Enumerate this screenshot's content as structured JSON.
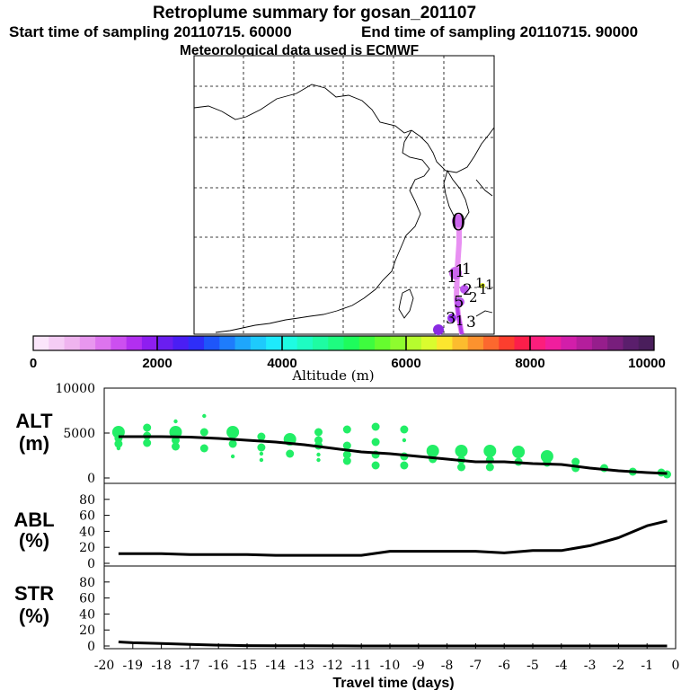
{
  "title": {
    "line1": "Retroplume summary for gosan_201107",
    "line2_start": "Start time of sampling 20110715. 60000",
    "line2_end": "End time of sampling 20110715. 90000",
    "line3": "Meteorological data used is ECMWF"
  },
  "map": {
    "day_labels": [
      "0",
      "1",
      "1",
      "1",
      "1",
      "1",
      "1",
      "2",
      "2",
      "5",
      "3",
      "1",
      "3"
    ]
  },
  "colorbar": {
    "label": "Altitude (m)",
    "tick_labels": [
      "0",
      "2000",
      "4000",
      "6000",
      "8000",
      "10000"
    ],
    "colors": [
      "#fbe6fb",
      "#f5cdf5",
      "#efb4ef",
      "#e897ef",
      "#dd74ee",
      "#cc4ff0",
      "#b22ff0",
      "#8e1ef0",
      "#6a1ef0",
      "#4a1ef4",
      "#2e2ef8",
      "#1e56fa",
      "#1e7cfc",
      "#1ea6fc",
      "#1ecafc",
      "#1eeafc",
      "#1efce2",
      "#1efcc2",
      "#1efca2",
      "#1efc80",
      "#1efc5c",
      "#3efc3e",
      "#66fc2e",
      "#8efc2e",
      "#b6fc2e",
      "#dafc2e",
      "#fce62e",
      "#fcbc2e",
      "#fc922e",
      "#fc682e",
      "#fc3e2e",
      "#fc1e4a",
      "#fc1e7c",
      "#f01e9e",
      "#d21eaa",
      "#b41e9c",
      "#961e8c",
      "#781e7c",
      "#5a1e6c",
      "#4a1e5c"
    ],
    "colors_note": "colour keys"
  },
  "chart_data": {
    "type": "line",
    "title": "Retroplume summary for gosan_201107",
    "xlabel": "Travel time (days)",
    "xlim": [
      -20,
      0
    ],
    "x_tick_labels": [
      "-20",
      "-19",
      "-18",
      "-17",
      "-16",
      "-15",
      "-14",
      "-13",
      "-12",
      "-11",
      "-10",
      "-9",
      "-8",
      "-7",
      "-6",
      "-5",
      "-4",
      "-3",
      "-2",
      "-1",
      "0"
    ],
    "panels": [
      {
        "name": "ALT",
        "label_line1": "ALT",
        "label_line2": "(m)",
        "ylim": [
          0,
          10000
        ],
        "y_tick_labels": [
          "10000",
          "5000",
          "0"
        ],
        "line": {
          "x": [
            -19.5,
            -19,
            -18,
            -17,
            -16,
            -15,
            -14,
            -13,
            -12,
            -11,
            -10,
            -9,
            -8,
            -7,
            -6,
            -5,
            -4,
            -3,
            -2,
            -1,
            -0.3
          ],
          "y": [
            4600,
            4600,
            4600,
            4550,
            4400,
            4200,
            4000,
            3700,
            3300,
            2900,
            2700,
            2400,
            2100,
            1800,
            1800,
            1600,
            1500,
            1100,
            800,
            600,
            500
          ]
        },
        "clusters": {
          "color": "#22ee66",
          "x": [
            -19.5,
            -19.5,
            -19.5,
            -19.5,
            -18.5,
            -18.5,
            -18.5,
            -17.5,
            -17.5,
            -17.5,
            -17.5,
            -16.5,
            -16.5,
            -16.5,
            -15.5,
            -15.5,
            -15.5,
            -14.5,
            -14.5,
            -14.5,
            -14.5,
            -13.5,
            -13.5,
            -12.5,
            -12.5,
            -12.5,
            -12.5,
            -12.5,
            -11.5,
            -11.5,
            -11.5,
            -11.5,
            -10.5,
            -10.5,
            -10.5,
            -10.5,
            -9.5,
            -9.5,
            -9.5,
            -9.5,
            -8.5,
            -8.5,
            -7.5,
            -7.5,
            -7.5,
            -6.5,
            -6.5,
            -6.5,
            -5.5,
            -5.5,
            -4.5,
            -4.5,
            -3.5,
            -3.5,
            -2.5,
            -1.5,
            -0.5,
            -0.3
          ],
          "y": [
            5100,
            4400,
            3800,
            3300,
            5600,
            4700,
            3900,
            6300,
            5100,
            4200,
            3500,
            6900,
            5100,
            3300,
            5100,
            3800,
            2400,
            4600,
            3400,
            2700,
            2000,
            4300,
            2700,
            5100,
            4200,
            3600,
            2600,
            2000,
            5400,
            3600,
            2600,
            1900,
            5700,
            4000,
            2600,
            1400,
            5400,
            4200,
            2400,
            1400,
            3000,
            2100,
            3000,
            2000,
            1200,
            3000,
            2000,
            1200,
            2900,
            1800,
            2400,
            1700,
            1800,
            1100,
            1100,
            700,
            600,
            400
          ],
          "size": [
            2,
            1,
            1,
            0,
            1,
            1,
            1,
            0,
            2,
            1,
            1,
            0,
            1,
            1,
            2,
            1,
            0,
            1,
            1,
            0,
            0,
            2,
            1,
            1,
            1,
            1,
            0,
            0,
            1,
            1,
            1,
            1,
            1,
            1,
            1,
            1,
            1,
            0,
            1,
            1,
            2,
            1,
            2,
            1,
            1,
            2,
            1,
            1,
            2,
            1,
            2,
            1,
            1,
            1,
            1,
            1,
            1,
            1
          ]
        }
      },
      {
        "name": "ABL",
        "label_line1": "ABL",
        "label_line2": "(%)",
        "ylim": [
          0,
          100
        ],
        "y_tick_labels": [
          "80",
          "60",
          "40",
          "20",
          "0"
        ],
        "line": {
          "x": [
            -19.5,
            -19,
            -18,
            -17,
            -16,
            -15,
            -14,
            -13,
            -12,
            -11,
            -10,
            -9,
            -8,
            -7,
            -6,
            -5,
            -4,
            -3,
            -2,
            -1,
            -0.3
          ],
          "y": [
            12,
            12,
            12,
            11,
            11,
            11,
            10,
            10,
            10,
            10,
            15,
            15,
            15,
            15,
            13,
            16,
            16,
            22,
            32,
            47,
            53
          ]
        }
      },
      {
        "name": "STR",
        "label_line1": "STR",
        "label_line2": "(%)",
        "ylim": [
          0,
          100
        ],
        "y_tick_labels": [
          "80",
          "60",
          "40",
          "20",
          "0"
        ],
        "line": {
          "x": [
            -19.5,
            -19,
            -18,
            -17,
            -16,
            -15,
            -14,
            -13,
            -12,
            -11,
            -10,
            -9,
            -8,
            -7,
            -6,
            -5,
            -4,
            -3,
            -2,
            -1,
            -0.3
          ],
          "y": [
            5,
            4,
            3,
            2,
            1,
            0.5,
            0.3,
            0.2,
            0.1,
            0,
            0,
            0,
            0,
            0,
            0,
            0,
            0,
            0,
            0,
            0,
            0
          ]
        }
      }
    ]
  }
}
